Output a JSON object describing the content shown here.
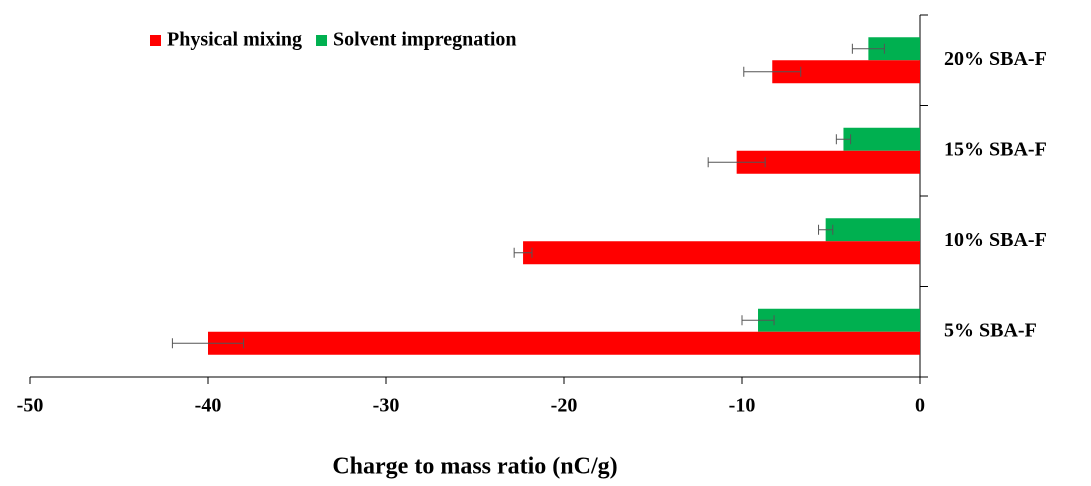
{
  "chart_data": {
    "type": "hbar",
    "xlabel": "Charge to mass ratio (nC/g)",
    "categories": [
      "20% SBA-F",
      "15% SBA-F",
      "10% SBA-F",
      "5% SBA-F"
    ],
    "series": [
      {
        "name": "Solvent impregnation",
        "color": "#00b050",
        "values": [
          -2.9,
          -4.3,
          -5.3,
          -9.1
        ],
        "errors": [
          0.9,
          0.4,
          0.4,
          0.9
        ]
      },
      {
        "name": "Physical mixing",
        "color": "#ff0000",
        "values": [
          -8.3,
          -10.3,
          -22.3,
          -40
        ],
        "errors": [
          1.6,
          1.6,
          0.5,
          2.0
        ]
      }
    ],
    "legend_order": [
      1,
      0
    ],
    "xlim": [
      -50,
      0
    ],
    "xticks": [
      -50,
      -40,
      -30,
      -20,
      -10,
      0
    ]
  }
}
